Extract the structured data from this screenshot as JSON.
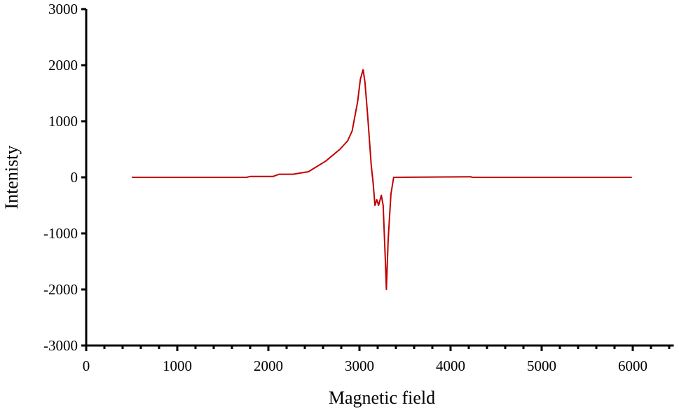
{
  "chart_data": {
    "type": "line",
    "title": "",
    "xlabel": "Magnetic field",
    "ylabel": "Intenisty",
    "xlim": [
      0,
      6450
    ],
    "ylim": [
      -3000,
      3000
    ],
    "x_ticks": [
      0,
      1000,
      2000,
      3000,
      4000,
      5000,
      6000
    ],
    "x_tick_labels": [
      "0",
      "1000",
      "2000",
      "3000",
      "4000",
      "5000",
      "6000"
    ],
    "x_minor_tick_step": 200,
    "y_ticks": [
      3000,
      2000,
      1000,
      0,
      -1000,
      -2000,
      -3000
    ],
    "y_tick_labels": [
      "3000",
      "2000",
      "1000",
      "0",
      "-1000",
      "-2000",
      "-3000"
    ],
    "grid": false,
    "legend": null,
    "series": [
      {
        "name": "Intensity",
        "color": "#c00000",
        "x": [
          500,
          1760,
          1800,
          2050,
          2120,
          2270,
          2440,
          2630,
          2785,
          2870,
          2920,
          2980,
          3010,
          3040,
          3060,
          3090,
          3130,
          3150,
          3170,
          3190,
          3210,
          3240,
          3260,
          3285,
          3295,
          3315,
          3345,
          3375,
          4220,
          4240,
          5990
        ],
        "y": [
          0,
          0,
          15,
          15,
          55,
          55,
          100,
          290,
          500,
          650,
          830,
          1350,
          1750,
          1920,
          1700,
          1100,
          200,
          -100,
          -500,
          -400,
          -500,
          -320,
          -500,
          -1500,
          -2000,
          -1100,
          -300,
          0,
          10,
          0,
          0
        ]
      }
    ]
  }
}
